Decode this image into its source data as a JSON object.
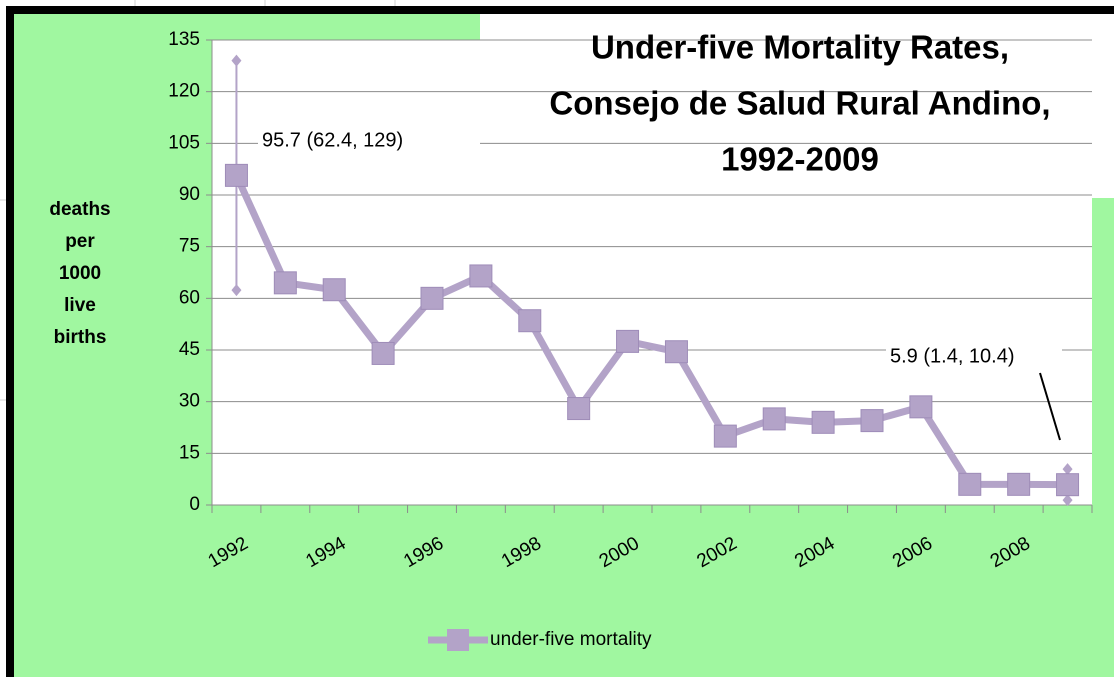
{
  "chart_data": {
    "type": "line",
    "title": [
      "Under-five Mortality Rates,",
      "Consejo de Salud Rural Andino,",
      "1992-2009"
    ],
    "ylabel": [
      "deaths",
      "per",
      "1000",
      "live",
      "births"
    ],
    "categories": [
      "1992",
      null,
      "1994",
      null,
      "1996",
      null,
      "1998",
      null,
      "2000",
      null,
      "2002",
      null,
      "2004",
      null,
      "2006",
      null,
      "2008",
      null
    ],
    "series": [
      {
        "name": "under-five mortality",
        "color": "#b3a3c8",
        "values": [
          95.7,
          64.5,
          62.5,
          44,
          60,
          66.5,
          53.5,
          28,
          47.5,
          44.5,
          20,
          25,
          24,
          24.5,
          28.5,
          6,
          6,
          5.9
        ],
        "error_low": [
          62.4,
          null,
          null,
          null,
          null,
          null,
          null,
          null,
          null,
          null,
          null,
          null,
          null,
          null,
          null,
          null,
          null,
          1.4
        ],
        "error_high": [
          129,
          null,
          null,
          null,
          null,
          null,
          null,
          null,
          null,
          null,
          null,
          null,
          null,
          null,
          null,
          null,
          null,
          10.4
        ]
      }
    ],
    "annotations": [
      "95.7 (62.4, 129)",
      "5.9 (1.4, 10.4)"
    ],
    "ylim": [
      0,
      135
    ],
    "yticks": [
      0,
      15,
      30,
      45,
      60,
      75,
      90,
      105,
      120,
      135
    ],
    "grid": true
  }
}
